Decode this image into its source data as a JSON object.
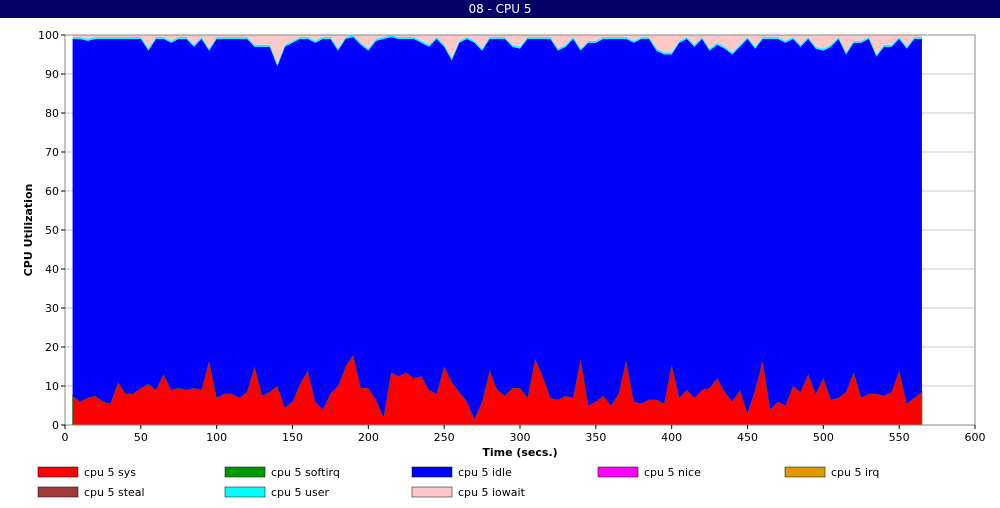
{
  "chart_data": {
    "type": "stacked-area",
    "title": "08 - CPU 5",
    "x_label": "Time (secs.)",
    "y_label": "CPU Utilization",
    "xlim": [
      0,
      600
    ],
    "xticks": [
      0,
      50,
      100,
      150,
      200,
      250,
      300,
      350,
      400,
      450,
      500,
      550,
      600
    ],
    "ylim": [
      0,
      100
    ],
    "yticks": [
      0,
      10,
      20,
      30,
      40,
      50,
      60,
      70,
      80,
      90,
      100
    ],
    "grid": true,
    "x": [
      5,
      10,
      15,
      20,
      25,
      30,
      35,
      40,
      45,
      50,
      55,
      60,
      65,
      70,
      75,
      80,
      85,
      90,
      95,
      100,
      105,
      110,
      115,
      120,
      125,
      130,
      135,
      140,
      145,
      150,
      155,
      160,
      165,
      170,
      175,
      180,
      185,
      190,
      195,
      200,
      205,
      210,
      215,
      220,
      225,
      230,
      235,
      240,
      245,
      250,
      255,
      260,
      265,
      270,
      275,
      280,
      285,
      290,
      295,
      300,
      305,
      310,
      315,
      320,
      325,
      330,
      335,
      340,
      345,
      350,
      355,
      360,
      365,
      370,
      375,
      380,
      385,
      390,
      395,
      400,
      405,
      410,
      415,
      420,
      425,
      430,
      435,
      440,
      445,
      450,
      455,
      460,
      465,
      470,
      475,
      480,
      485,
      490,
      495,
      500,
      505,
      510,
      515,
      520,
      525,
      530,
      535,
      540,
      545,
      550,
      555,
      560,
      565
    ],
    "series": [
      {
        "name": "cpu 5 sys",
        "color": "#ff0000",
        "values": [
          7.5,
          6,
          7,
          7.5,
          6,
          5.5,
          11,
          8,
          8,
          9.5,
          10.5,
          9,
          13,
          9,
          9.5,
          9,
          9.5,
          9,
          16.5,
          7,
          8,
          8,
          7,
          8.5,
          15,
          7.5,
          8.5,
          10,
          4.5,
          6,
          10.5,
          14,
          6,
          4,
          8,
          10,
          15,
          18,
          9.5,
          9.5,
          6.5,
          2,
          13.5,
          12.5,
          13.5,
          12,
          12.5,
          9,
          8,
          15,
          11,
          8.5,
          6,
          1.5,
          6,
          14,
          9,
          7.5,
          9.5,
          9.5,
          7,
          17,
          12.5,
          7,
          6.5,
          7.5,
          7,
          17,
          5,
          6,
          7.5,
          5,
          8,
          16.5,
          6,
          5.5,
          6.5,
          6.5,
          5.5,
          15.5,
          7,
          9,
          7,
          9,
          9.5,
          12,
          8.5,
          6,
          9,
          3,
          9,
          16.5,
          4,
          6,
          5,
          10,
          8.5,
          13,
          8,
          12,
          6.5,
          7,
          8.5,
          13.5,
          7,
          8,
          8,
          7.5,
          8.5,
          14,
          5.5,
          7,
          8.5
        ]
      },
      {
        "name": "cpu 5 softirq",
        "color": "#009900",
        "values": [
          0,
          0,
          0,
          0,
          0,
          0,
          0,
          0,
          0,
          0,
          0,
          0,
          0,
          0,
          0,
          0,
          0,
          0,
          0,
          0,
          0,
          0,
          0,
          0,
          0,
          0,
          0,
          0,
          0,
          0,
          0,
          0,
          0,
          0,
          0,
          0,
          0,
          0,
          0,
          0,
          0,
          0,
          0,
          0,
          0,
          0,
          0,
          0,
          0,
          0,
          0,
          0,
          0,
          0,
          0,
          0,
          0,
          0,
          0,
          0,
          0,
          0,
          0,
          0,
          0,
          0,
          0,
          0,
          0,
          0,
          0,
          0,
          0,
          0,
          0,
          0,
          0,
          0,
          0,
          0,
          0,
          0,
          0,
          0,
          0,
          0,
          0,
          0,
          0,
          0,
          0,
          0,
          0,
          0,
          0,
          0,
          0,
          0,
          0,
          0,
          0,
          0,
          0,
          0,
          0,
          0,
          0,
          0,
          0,
          0,
          0,
          0,
          0
        ]
      },
      {
        "name": "cpu 5 idle",
        "color": "#0000ff",
        "values": [
          91.5,
          93,
          91.5,
          91.5,
          93,
          93.5,
          88,
          91,
          91,
          89.5,
          85.5,
          90,
          86,
          89,
          89.5,
          90,
          87.5,
          90,
          79.5,
          92,
          91,
          91,
          92,
          90.5,
          82,
          89.5,
          88.5,
          82,
          92.5,
          92,
          88.5,
          85,
          92,
          95,
          91,
          86,
          84,
          81.5,
          88,
          86.5,
          92,
          97,
          86,
          86.5,
          85.5,
          87,
          85.5,
          88,
          91,
          82,
          82.5,
          89.5,
          93,
          96.5,
          90,
          85,
          90,
          91.5,
          87.5,
          87,
          92,
          82,
          86.5,
          92,
          89.5,
          89.5,
          92,
          79,
          93,
          92,
          91.5,
          94,
          91,
          82.5,
          92,
          93.5,
          92.5,
          89.5,
          89.5,
          79.5,
          91,
          90,
          90,
          90,
          86.5,
          85.5,
          88,
          89,
          88,
          96,
          87.5,
          82.5,
          95,
          93,
          93,
          89,
          88.5,
          86,
          88.5,
          84,
          90.5,
          92,
          86.5,
          84.5,
          91,
          91,
          86.5,
          89.5,
          88.5,
          85,
          91,
          92,
          90.5
        ]
      },
      {
        "name": "cpu 5 nice",
        "color": "#ff00ff",
        "values": [
          0,
          0,
          0,
          0,
          0,
          0,
          0,
          0,
          0,
          0,
          0,
          0,
          0,
          0,
          0,
          0,
          0,
          0,
          0,
          0,
          0,
          0,
          0,
          0,
          0,
          0,
          0,
          0,
          0,
          0,
          0,
          0,
          0,
          0,
          0,
          0,
          0,
          0,
          0,
          0,
          0,
          0,
          0,
          0,
          0,
          0,
          0,
          0,
          0,
          0,
          0,
          0,
          0,
          0,
          0,
          0,
          0,
          0,
          0,
          0,
          0,
          0,
          0,
          0,
          0,
          0,
          0,
          0,
          0,
          0,
          0,
          0,
          0,
          0,
          0,
          0,
          0,
          0,
          0,
          0,
          0,
          0,
          0,
          0,
          0,
          0,
          0,
          0,
          0,
          0,
          0,
          0,
          0,
          0,
          0,
          0,
          0,
          0,
          0,
          0,
          0,
          0,
          0,
          0,
          0,
          0,
          0,
          0,
          0,
          0,
          0,
          0,
          0
        ]
      },
      {
        "name": "cpu 5 irq",
        "color": "#e09900",
        "values": [
          0,
          0,
          0,
          0,
          0,
          0,
          0,
          0,
          0,
          0,
          0,
          0,
          0,
          0,
          0,
          0,
          0,
          0,
          0,
          0,
          0,
          0,
          0,
          0,
          0,
          0,
          0,
          0,
          0,
          0,
          0,
          0,
          0,
          0,
          0,
          0,
          0,
          0,
          0,
          0,
          0,
          0,
          0,
          0,
          0,
          0,
          0,
          0,
          0,
          0,
          0,
          0,
          0,
          0,
          0,
          0,
          0,
          0,
          0,
          0,
          0,
          0,
          0,
          0,
          0,
          0,
          0,
          0,
          0,
          0,
          0,
          0,
          0,
          0,
          0,
          0,
          0,
          0,
          0,
          0,
          0,
          0,
          0,
          0,
          0,
          0,
          0,
          0,
          0,
          0,
          0,
          0,
          0,
          0,
          0,
          0,
          0,
          0,
          0,
          0,
          0,
          0,
          0,
          0,
          0,
          0,
          0,
          0,
          0,
          0,
          0,
          0,
          0
        ]
      },
      {
        "name": "cpu 5 steal",
        "color": "#a33a3a",
        "values": [
          0,
          0,
          0,
          0,
          0,
          0,
          0,
          0,
          0,
          0,
          0,
          0,
          0,
          0,
          0,
          0,
          0,
          0,
          0,
          0,
          0,
          0,
          0,
          0,
          0,
          0,
          0,
          0,
          0,
          0,
          0,
          0,
          0,
          0,
          0,
          0,
          0,
          0,
          0,
          0,
          0,
          0,
          0,
          0,
          0,
          0,
          0,
          0,
          0,
          0,
          0,
          0,
          0,
          0,
          0,
          0,
          0,
          0,
          0,
          0,
          0,
          0,
          0,
          0,
          0,
          0,
          0,
          0,
          0,
          0,
          0,
          0,
          0,
          0,
          0,
          0,
          0,
          0,
          0,
          0,
          0,
          0,
          0,
          0,
          0,
          0,
          0,
          0,
          0,
          0,
          0,
          0,
          0,
          0,
          0,
          0,
          0,
          0,
          0,
          0,
          0,
          0,
          0,
          0,
          0,
          0,
          0,
          0,
          0,
          0,
          0,
          0,
          0
        ]
      },
      {
        "name": "cpu 5 user",
        "color": "#00ffff",
        "values": [
          0.5,
          0.5,
          0.5,
          0.5,
          0.5,
          0.5,
          0.5,
          0.5,
          0.5,
          0.5,
          0.5,
          0.5,
          0.5,
          0.5,
          0.5,
          0.5,
          0.5,
          0.5,
          0.5,
          0.5,
          0.5,
          0.5,
          0.5,
          0.5,
          0.5,
          0.5,
          0.5,
          0.5,
          0.5,
          0.5,
          0.5,
          0.5,
          0.5,
          0.5,
          0.5,
          0.5,
          0.5,
          0.5,
          0.5,
          0.5,
          0.5,
          0.5,
          0.5,
          0.5,
          0.5,
          0.5,
          0.5,
          0.5,
          0.5,
          0.5,
          0.5,
          0.5,
          0.5,
          0.5,
          0.5,
          0.5,
          0.5,
          0.5,
          0.5,
          0.5,
          0.5,
          0.5,
          0.5,
          0.5,
          0.5,
          0.5,
          0.5,
          0.5,
          0.5,
          0.5,
          0.5,
          0.5,
          0.5,
          0.5,
          0.5,
          0.5,
          0.5,
          0.5,
          0.5,
          0.5,
          0.5,
          0.5,
          0.5,
          0.5,
          0.5,
          0.5,
          0.5,
          0.5,
          0.5,
          0.5,
          0.5,
          0.5,
          0.5,
          0.5,
          0.5,
          0.5,
          0.5,
          0.5,
          0.5,
          0.5,
          0.5,
          0.5,
          0.5,
          0.5,
          0.5,
          0.5,
          0.5,
          0.5,
          0.5,
          0.5,
          0.5,
          0.5,
          0.5
        ]
      },
      {
        "name": "cpu 5 iowait",
        "color": "#ffc8c8",
        "values": [
          0.5,
          0.5,
          1,
          0.5,
          0.5,
          0.5,
          0.5,
          0.5,
          0.5,
          0.5,
          3.5,
          0.5,
          0.5,
          1.5,
          0.5,
          0.5,
          2.5,
          0.5,
          3.5,
          0.5,
          0.5,
          0.5,
          0.5,
          0.5,
          2.5,
          2.5,
          2.5,
          7.5,
          2.5,
          1.5,
          0.5,
          0.5,
          1.5,
          0.5,
          0.5,
          3.5,
          0.5,
          0,
          2,
          3.5,
          1,
          0.5,
          0,
          0.5,
          0.5,
          0.5,
          1.5,
          2.5,
          0.5,
          2.5,
          6,
          1.5,
          0.5,
          1.5,
          3.5,
          0.5,
          0.5,
          0.5,
          2.5,
          3,
          0.5,
          0.5,
          0.5,
          0.5,
          3.5,
          2.5,
          0.5,
          3.5,
          1.5,
          1.5,
          0.5,
          0.5,
          0.5,
          0.5,
          1.5,
          0.5,
          0.5,
          3.5,
          4.5,
          4.5,
          1.5,
          0.5,
          2.5,
          0.5,
          3.5,
          2,
          3,
          4.5,
          2.5,
          0.5,
          3,
          0.5,
          0.5,
          0.5,
          1.5,
          0.5,
          2.5,
          0.5,
          3,
          3.5,
          2.5,
          0.5,
          4.5,
          1.5,
          1.5,
          0.5,
          5,
          2.5,
          2.5,
          0.5,
          3,
          0.5,
          0.5
        ]
      }
    ]
  }
}
